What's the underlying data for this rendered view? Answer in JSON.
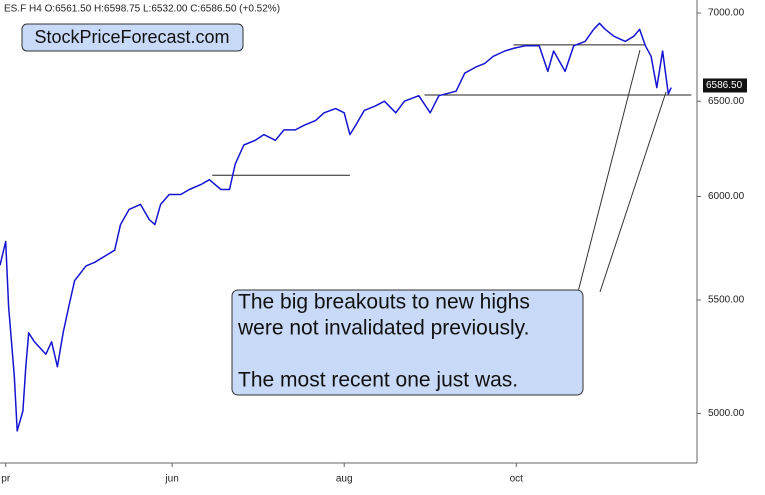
{
  "chart_data": {
    "type": "line",
    "subtitle": "ES.F  H4  O:6561.50 H:6598.75 L:6532.00 C:6586.50 (+0.52%)",
    "logo": "StockPriceForecast.com",
    "annotation": [
      "The big breakouts to new highs",
      "were not invalidated previously.",
      "The most recent one just was."
    ],
    "x": [
      0,
      2,
      3,
      5,
      6,
      8,
      9,
      10,
      12,
      16,
      18,
      20,
      22,
      24,
      26,
      30,
      33,
      37,
      40,
      42,
      45,
      49,
      52,
      54,
      56,
      59,
      63,
      66,
      70,
      73,
      77,
      80,
      82,
      85,
      89,
      92,
      96,
      99,
      103,
      106,
      110,
      113,
      117,
      120,
      122,
      124,
      127,
      131,
      134,
      138,
      141,
      146,
      150,
      153,
      159,
      162,
      166,
      169,
      172,
      176,
      179,
      183,
      188,
      191,
      193,
      197,
      200,
      204,
      207,
      209,
      211,
      214,
      218,
      221,
      223,
      225,
      227,
      229,
      231,
      233,
      234
    ],
    "series": [
      {
        "name": "ES.F",
        "color": "#1414d2",
        "values": [
          5663,
          5777,
          5470,
          5160,
          4927,
          5010,
          5200,
          5350,
          5310,
          5255,
          5310,
          5200,
          5350,
          5470,
          5590,
          5660,
          5677,
          5710,
          5735,
          5860,
          5935,
          5960,
          5885,
          5860,
          5960,
          6010,
          6010,
          6035,
          6060,
          6085,
          6035,
          6035,
          6165,
          6265,
          6290,
          6320,
          6290,
          6345,
          6345,
          6370,
          6395,
          6437,
          6460,
          6437,
          6320,
          6370,
          6450,
          6475,
          6500,
          6437,
          6500,
          6530,
          6437,
          6530,
          6555,
          6655,
          6690,
          6710,
          6750,
          6780,
          6795,
          6810,
          6810,
          6665,
          6780,
          6665,
          6810,
          6835,
          6905,
          6940,
          6905,
          6865,
          6835,
          6865,
          6905,
          6810,
          6750,
          6575,
          6780,
          6540,
          6575
        ]
      }
    ],
    "reference_lines": [
      {
        "y": 6108,
        "x": [
          74,
          122
        ]
      },
      {
        "y": 6534,
        "x": [
          148,
          241
        ]
      },
      {
        "y": 6815,
        "x": [
          179,
          225
        ]
      }
    ],
    "last_price": {
      "value": 6586.5,
      "label": "6586.50"
    },
    "xlim": [
      0,
      243
    ],
    "xticks": [
      {
        "value": 2,
        "label": "pr"
      },
      {
        "value": 60,
        "label": "jun"
      },
      {
        "value": 120,
        "label": "aug"
      },
      {
        "value": 180,
        "label": "oct"
      }
    ],
    "ylim": [
      4796,
      7077
    ],
    "yticks": [
      {
        "value": 5000,
        "label": "5000.00"
      },
      {
        "value": 5500,
        "label": "5500.00"
      },
      {
        "value": 6000,
        "label": "6000.00"
      },
      {
        "value": 6500,
        "label": "6500.00"
      },
      {
        "value": 7000,
        "label": "7000.00"
      }
    ],
    "log_scale": true
  }
}
